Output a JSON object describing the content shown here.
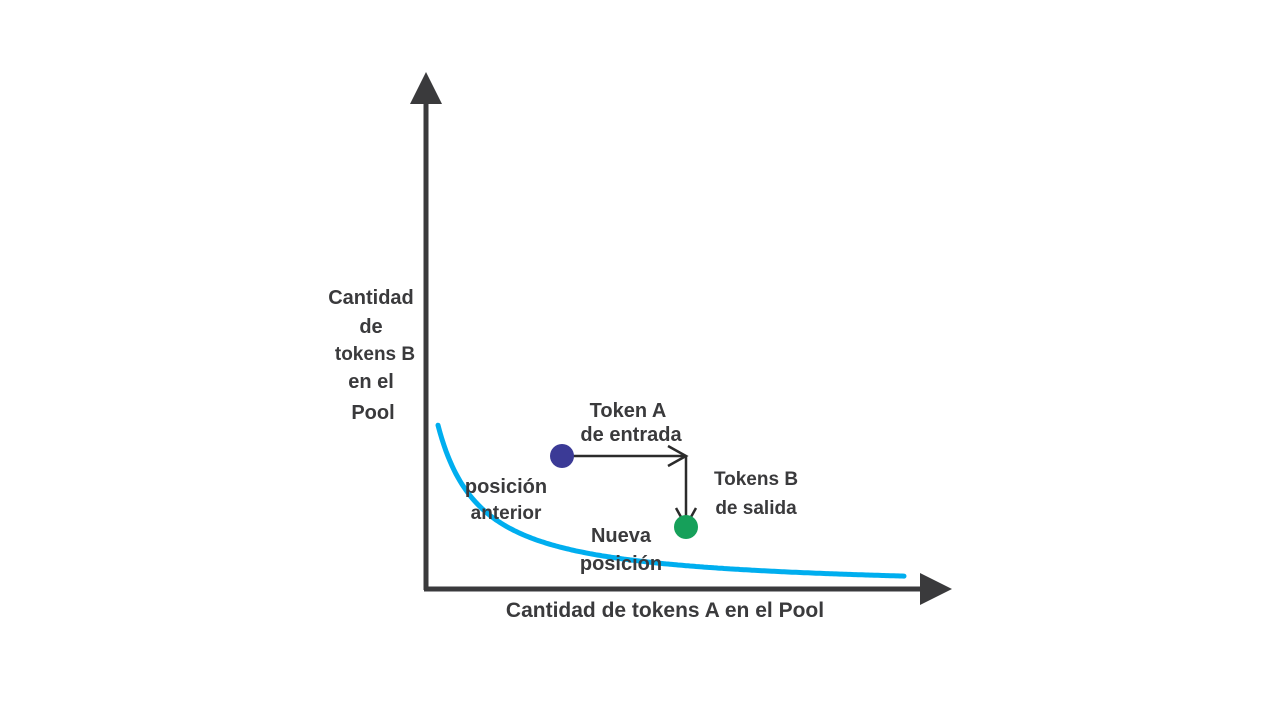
{
  "diagram": {
    "x_axis_label": "Cantidad de tokens A en el Pool",
    "y_axis_label_lines": [
      "Cantidad",
      "de",
      "tokens B",
      "en el",
      "Pool"
    ],
    "token_in_label_lines": [
      "Token A",
      "de entrada"
    ],
    "token_out_label_lines": [
      "Tokens B",
      "de salida"
    ],
    "previous_position_label_lines": [
      "posición",
      "anterior"
    ],
    "new_position_label_lines": [
      "Nueva",
      "posición"
    ]
  },
  "colors": {
    "axis": "#3a3a3c",
    "curve": "#00aeef",
    "previous_point": "#3b3a96",
    "new_point": "#16a05a",
    "arrow": "#2b2b2b",
    "text": "#3a3a3c"
  }
}
